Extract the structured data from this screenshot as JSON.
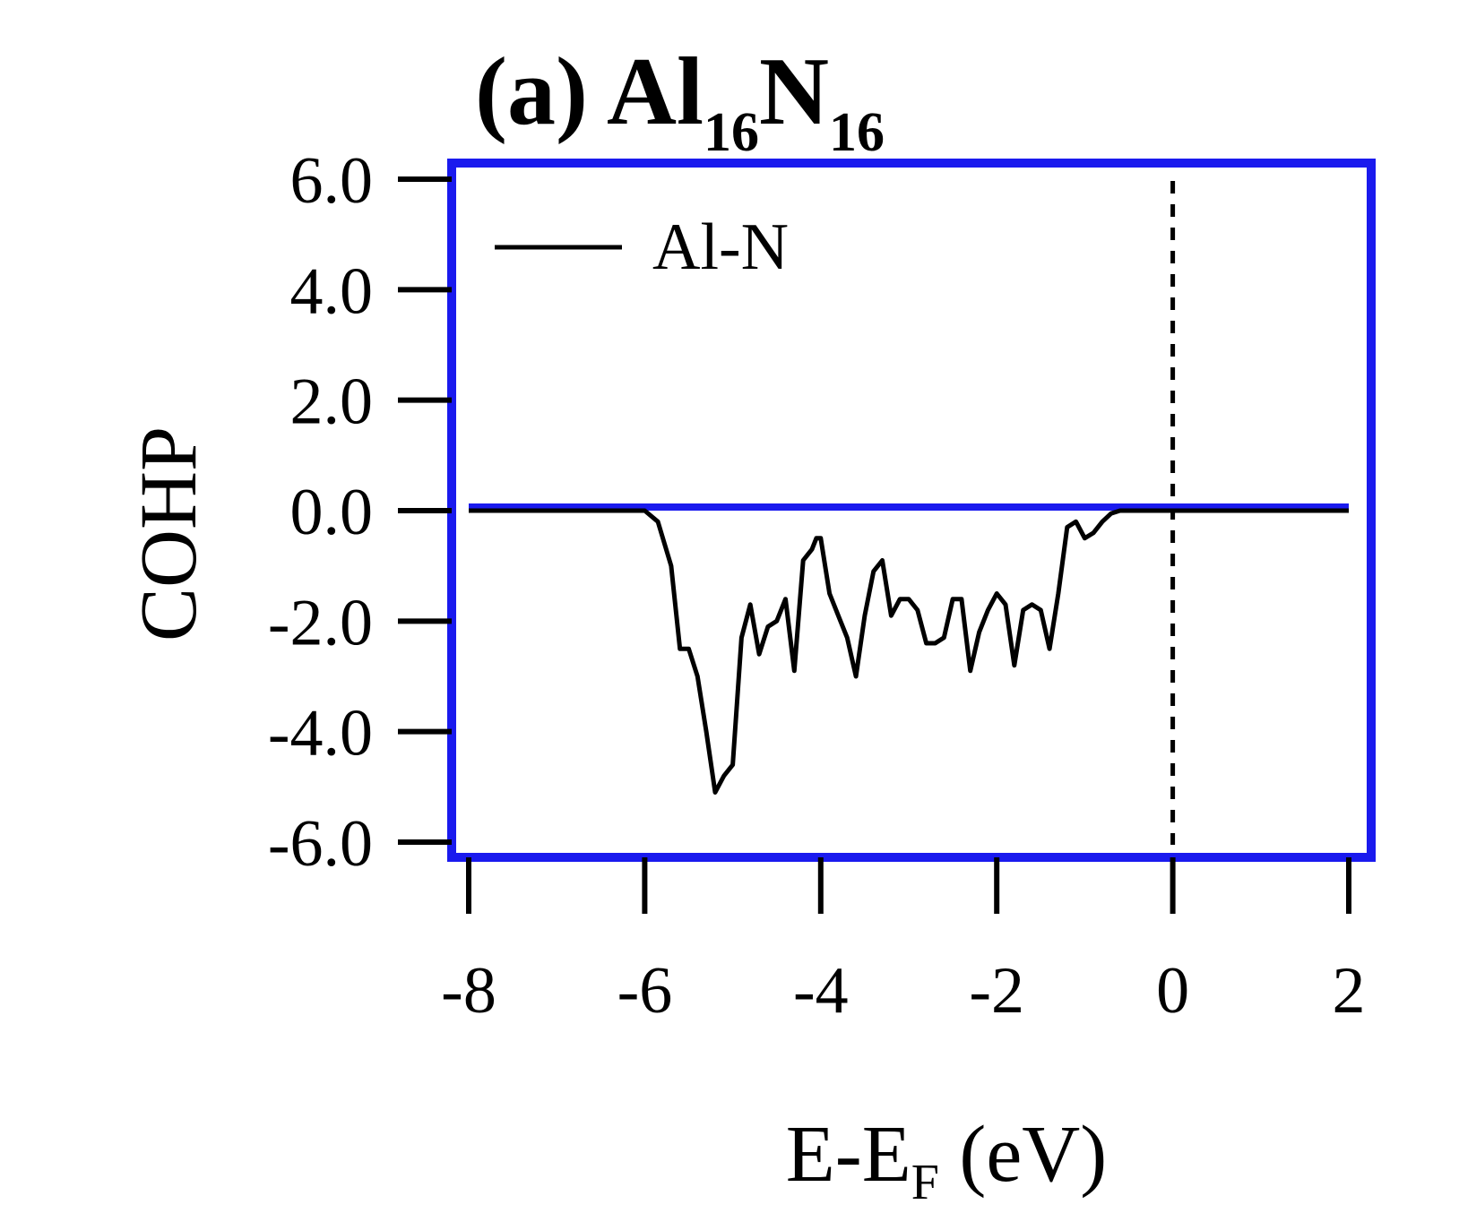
{
  "chart_data": {
    "type": "line",
    "title": {
      "prefix": "(a) ",
      "el1": "Al",
      "sub1": "16",
      "el2": "N",
      "sub2": "16"
    },
    "ylabel": "COHP",
    "xlabel": {
      "main": "E-E",
      "sub": "F",
      "unit": " (eV)"
    },
    "xlim": [
      -8,
      2
    ],
    "ylim": [
      -6,
      6
    ],
    "xticks": [
      -8,
      -6,
      -4,
      -2,
      0,
      2
    ],
    "xtick_labels": [
      "-8",
      "-6",
      "-4",
      "-2",
      "0",
      "2"
    ],
    "yticks": [
      6,
      4,
      2,
      0,
      -2,
      -4,
      -6
    ],
    "ytick_labels": [
      "6.0",
      "4.0",
      "2.0",
      "0.0",
      "-2.0",
      "-4.0",
      "-6.0"
    ],
    "grid": false,
    "legend_position": "top-left",
    "fermi_line_x": 0,
    "frame_color": "#1a1aee",
    "zero_line_color": "#1a1aee",
    "series": [
      {
        "name": "Al-N",
        "color": "#000000",
        "x": [
          -8.0,
          -6.0,
          -5.85,
          -5.7,
          -5.6,
          -5.5,
          -5.4,
          -5.3,
          -5.2,
          -5.1,
          -5.0,
          -4.9,
          -4.8,
          -4.7,
          -4.6,
          -4.5,
          -4.4,
          -4.3,
          -4.2,
          -4.15,
          -4.1,
          -4.05,
          -4.0,
          -3.9,
          -3.8,
          -3.7,
          -3.6,
          -3.5,
          -3.4,
          -3.3,
          -3.2,
          -3.1,
          -3.0,
          -2.9,
          -2.8,
          -2.7,
          -2.6,
          -2.5,
          -2.4,
          -2.3,
          -2.2,
          -2.1,
          -2.0,
          -1.9,
          -1.8,
          -1.7,
          -1.6,
          -1.5,
          -1.4,
          -1.3,
          -1.2,
          -1.1,
          -1.0,
          -0.9,
          -0.8,
          -0.7,
          -0.6,
          -0.5,
          -0.4,
          -0.3,
          -0.2,
          0.0,
          2.0
        ],
        "y": [
          0.0,
          0.0,
          -0.2,
          -1.0,
          -2.5,
          -2.5,
          -3.0,
          -4.0,
          -5.1,
          -4.8,
          -4.6,
          -2.3,
          -1.7,
          -2.6,
          -2.1,
          -2.0,
          -1.6,
          -2.9,
          -0.9,
          -0.8,
          -0.7,
          -0.5,
          -0.5,
          -1.5,
          -1.9,
          -2.3,
          -3.0,
          -1.9,
          -1.1,
          -0.9,
          -1.9,
          -1.6,
          -1.6,
          -1.8,
          -2.4,
          -2.4,
          -2.3,
          -1.6,
          -1.6,
          -2.9,
          -2.2,
          -1.8,
          -1.5,
          -1.7,
          -2.8,
          -1.8,
          -1.7,
          -1.8,
          -2.5,
          -1.5,
          -0.3,
          -0.2,
          -0.5,
          -0.4,
          -0.2,
          -0.05,
          0.0,
          0.0,
          0.0,
          0.0,
          0.0,
          0.0,
          0.0
        ]
      }
    ]
  }
}
